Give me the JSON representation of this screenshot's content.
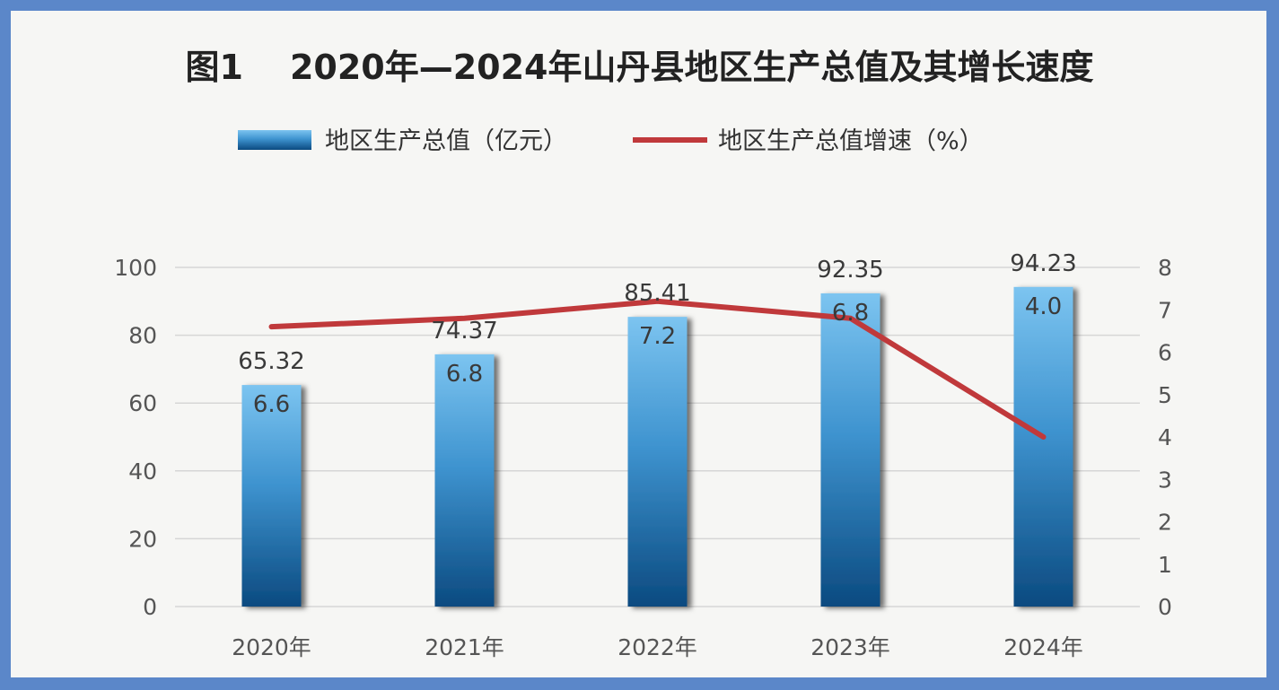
{
  "title": {
    "figure": "图1",
    "text": "2020年—2024年山丹县地区生产总值及其增长速度"
  },
  "colors": {
    "bar_top": "#7cc4f0",
    "bar_bottom": "#0b4a80",
    "line": "#c0393b",
    "frame": "#5b87c9"
  },
  "chart_data": {
    "type": "bar",
    "categories": [
      "2020年",
      "2021年",
      "2022年",
      "2023年",
      "2024年"
    ],
    "series": [
      {
        "name": "地区生产总值（亿元）",
        "type": "bar",
        "axis": "left",
        "values": [
          65.32,
          74.37,
          85.41,
          92.35,
          94.23
        ],
        "labels": [
          "65.32",
          "74.37",
          "85.41",
          "92.35",
          "94.23"
        ]
      },
      {
        "name": "地区生产总值增速（%）",
        "type": "line",
        "axis": "right",
        "values": [
          6.6,
          6.8,
          7.2,
          6.8,
          4.0
        ],
        "labels": [
          "6.6",
          "6.8",
          "7.2",
          "6.8",
          "4.0"
        ]
      }
    ],
    "ylim": [
      0,
      100
    ],
    "y_ticks": [
      "0",
      "20",
      "40",
      "60",
      "80",
      "100"
    ],
    "y2lim": [
      0,
      8
    ],
    "y2_ticks": [
      "0",
      "1",
      "2",
      "3",
      "4",
      "5",
      "6",
      "7",
      "8"
    ],
    "grid": true,
    "legend": "top"
  }
}
